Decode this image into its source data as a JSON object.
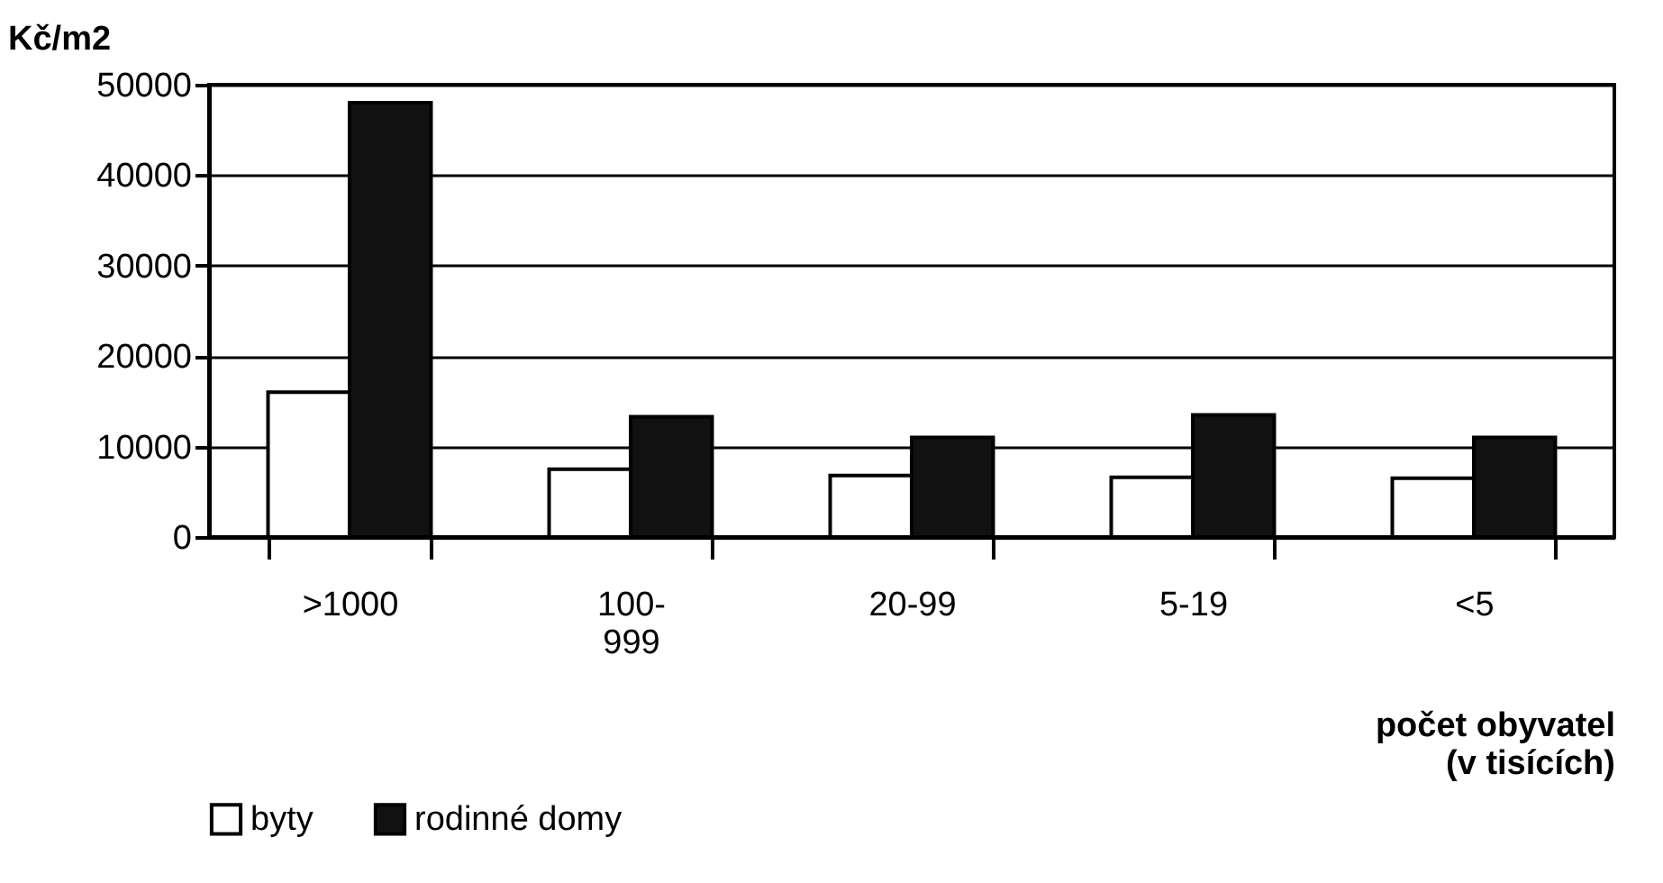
{
  "chart_data": {
    "type": "bar",
    "ylabel": "Kč/m2",
    "xlabel": "počet obyvatel (v tisících)",
    "categories": [
      ">1000",
      "100-999",
      "20-99",
      "5-19",
      "<5"
    ],
    "series": [
      {
        "name": "byty",
        "color": "#ffffff",
        "values": [
          16000,
          7500,
          6800,
          6600,
          6500
        ]
      },
      {
        "name": "rodinné domy",
        "color": "#111111",
        "values": [
          48000,
          13300,
          11000,
          13500,
          11000
        ]
      }
    ],
    "ylim": [
      0,
      50000
    ],
    "yticks": [
      0,
      10000,
      20000,
      30000,
      40000,
      50000
    ],
    "grid": "y",
    "legend": "bottom"
  }
}
